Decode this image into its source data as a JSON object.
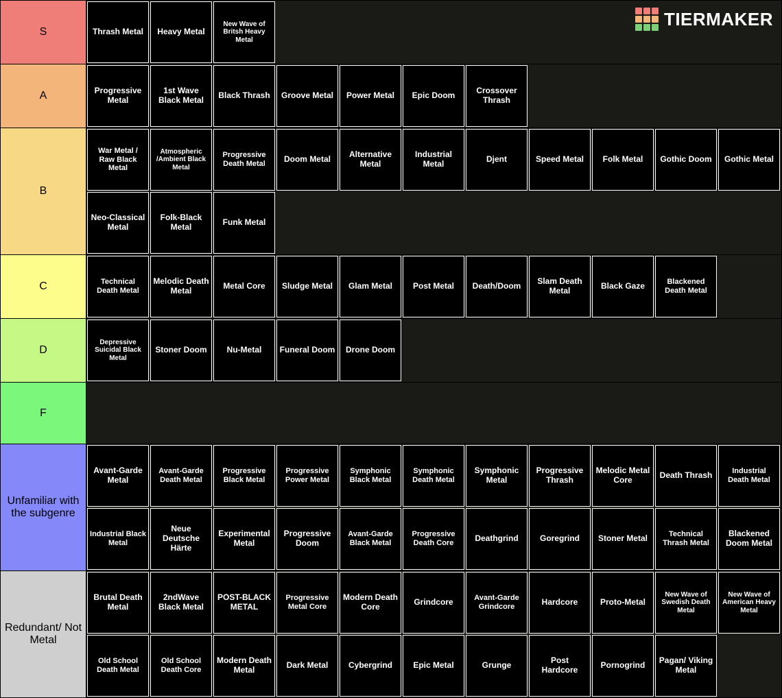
{
  "brand": "TIERMAKER",
  "logo_colors": [
    "#ee7e77",
    "#ee7e77",
    "#ee7e77",
    "#f3b57a",
    "#f3b57a",
    "#f3b57a",
    "#7fce7a",
    "#7fce7a",
    "#7fce7a"
  ],
  "tile_bg": "#000000",
  "tile_fg": "#ffffff",
  "page_bg": "#1a1a17",
  "tiers": [
    {
      "label": "S",
      "color": "#ee7e77",
      "items": [
        "Thrash Metal",
        "Heavy Metal",
        "New Wave of Britsh Heavy Metal"
      ]
    },
    {
      "label": "A",
      "color": "#f3b57a",
      "items": [
        "Progressive Metal",
        "1st Wave Black Metal",
        "Black Thrash",
        "Groove Metal",
        "Power Metal",
        "Epic Doom",
        "Crossover Thrash"
      ]
    },
    {
      "label": "B",
      "color": "#f6d885",
      "items": [
        "War Metal / Raw Black Metal",
        "Atmospheric /Ambient Black Metal",
        "Progressive Death Metal",
        "Doom Metal",
        "Alternative Metal",
        "Industrial Metal",
        "Djent",
        "Speed Metal",
        "Folk Metal",
        "Gothic Doom",
        "Gothic Metal",
        "Neo-Classical Metal",
        "Folk-Black Metal",
        "Funk Metal"
      ]
    },
    {
      "label": "C",
      "color": "#fdfd8b",
      "items": [
        "Technical Death Metal",
        "Melodic Death Metal",
        "Metal Core",
        "Sludge Metal",
        "Glam Metal",
        "Post Metal",
        "Death/Doom",
        "Slam Death Metal",
        "Black Gaze",
        "Blackened Death Metal"
      ]
    },
    {
      "label": "D",
      "color": "#c5f884",
      "items": [
        "Depressive Suicidal Black Metal",
        "Stoner Doom",
        "Nu-Metal",
        "Funeral Doom",
        "Drone Doom"
      ]
    },
    {
      "label": "F",
      "color": "#7bf87b",
      "items": []
    },
    {
      "label": "Unfamiliar with the subgenre",
      "color": "#8588f8",
      "items": [
        "Avant-Garde Metal",
        "Avant-Garde Death Metal",
        "Progressive Black Metal",
        "Progressive Power Metal",
        "Symphonic Black Metal",
        "Symphonic Death Metal",
        "Symphonic Metal",
        "Progressive Thrash",
        "Melodic Metal Core",
        "Death Thrash",
        "Industrial Death Metal",
        "Industrial Black Metal",
        "Neue Deutsche Härte",
        "Experimental Metal",
        "Progressive Doom",
        "Avant-Garde Black Metal",
        "Progressive Death Core",
        "Deathgrind",
        "Goregrind",
        "Stoner Metal",
        "Technical Thrash Metal",
        "Blackened Doom Metal"
      ]
    },
    {
      "label": "Redundant/ Not Metal",
      "color": "#cfcfcf",
      "items": [
        "Brutal Death Metal",
        "2ndWave Black Metal",
        "POST-BLACK METAL",
        "Progressive Metal Core",
        "Modern Death Core",
        "Grindcore",
        "Avant-Garde Grindcore",
        "Hardcore",
        "Proto-Metal",
        "New Wave of Swedish Death Metal",
        "New Wave of American Heavy Metal",
        "Old School Death Metal",
        "Old School Death Core",
        "Modern Death Metal",
        "Dark Metal",
        "Cybergrind",
        "Epic Metal",
        "Grunge",
        "Post Hardcore",
        "Pornogrind",
        "Pagan/ Viking Metal"
      ]
    }
  ]
}
